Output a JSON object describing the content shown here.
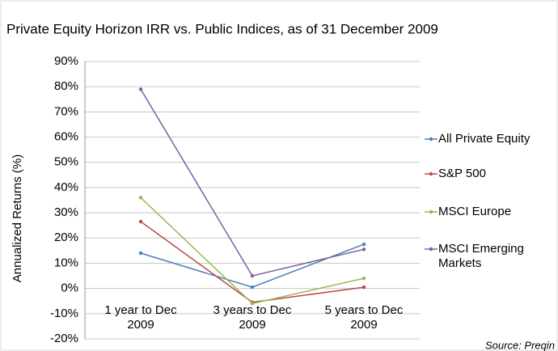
{
  "chart_data": {
    "type": "line",
    "title": "Private Equity Horizon IRR vs. Public Indices, as of 31 December 2009",
    "y_label": "Annualized Returns (%)",
    "source": "Source: Preqin",
    "categories": [
      "1 year to Dec 2009",
      "3 years to Dec 2009",
      "5 years to Dec 2009"
    ],
    "series": [
      {
        "name": "All Private Equity",
        "color": "#4a7ebb",
        "values": [
          14,
          0.5,
          17.5
        ]
      },
      {
        "name": "S&P 500",
        "color": "#be4b48",
        "values": [
          26.5,
          -5.5,
          0.5
        ]
      },
      {
        "name": "MSCI Europe",
        "color": "#98b954",
        "values": [
          36,
          -6,
          4
        ]
      },
      {
        "name": "MSCI Emerging Markets",
        "color": "#7d60a0",
        "values": [
          79,
          5,
          15.5
        ]
      }
    ],
    "ylim": [
      -20,
      90
    ],
    "yticks": [
      {
        "value": -20,
        "label": "-20%"
      },
      {
        "value": -10,
        "label": "-10%"
      },
      {
        "value": 0,
        "label": "0%"
      },
      {
        "value": 10,
        "label": "10%"
      },
      {
        "value": 20,
        "label": "20%"
      },
      {
        "value": 30,
        "label": "30%"
      },
      {
        "value": 40,
        "label": "40%"
      },
      {
        "value": 50,
        "label": "50%"
      },
      {
        "value": 60,
        "label": "60%"
      },
      {
        "value": 70,
        "label": "70%"
      },
      {
        "value": 80,
        "label": "80%"
      },
      {
        "value": 90,
        "label": "90%"
      }
    ],
    "grid": true,
    "legend": "right"
  }
}
